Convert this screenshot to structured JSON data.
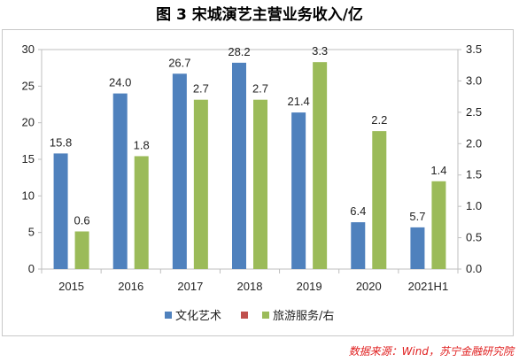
{
  "title": "图 3  宋城演艺主营业务收入/亿",
  "source": "数据来源：Wind，苏宁金融研究院",
  "chart_data": {
    "type": "bar",
    "categories": [
      "2015",
      "2016",
      "2017",
      "2018",
      "2019",
      "2020",
      "2021H1"
    ],
    "series": [
      {
        "name": "文化艺术",
        "axis": "left",
        "color": "#4f81bd",
        "values": [
          15.8,
          24.0,
          26.7,
          28.2,
          21.4,
          6.4,
          5.7
        ],
        "labels": [
          "15.8",
          "24.0",
          "26.7",
          "28.2",
          "21.4",
          "6.4",
          "5.7"
        ]
      },
      {
        "name": "",
        "axis": "left",
        "color": "#c0504d",
        "values": [
          0,
          0,
          0,
          0,
          0,
          0,
          0
        ]
      },
      {
        "name": "旅游服务/右",
        "axis": "right",
        "color": "#9bbb59",
        "values": [
          0.6,
          1.8,
          2.7,
          2.7,
          3.3,
          2.2,
          1.4
        ],
        "labels": [
          "0.6",
          "1.8",
          "2.7",
          "2.7",
          "3.3",
          "2.2",
          "1.4"
        ]
      }
    ],
    "y_left": {
      "min": 0,
      "max": 30,
      "ticks": [
        "0",
        "5",
        "10",
        "15",
        "20",
        "25",
        "30"
      ]
    },
    "y_right": {
      "min": 0,
      "max": 3.5,
      "ticks": [
        "0.0",
        "0.5",
        "1.0",
        "1.5",
        "2.0",
        "2.5",
        "3.0",
        "3.5"
      ]
    },
    "grid": false,
    "legend_position": "bottom"
  }
}
